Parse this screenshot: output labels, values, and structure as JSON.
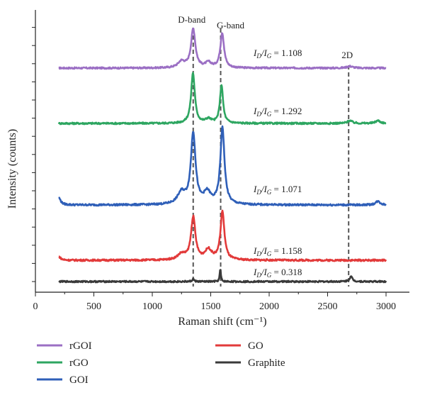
{
  "chart_data": {
    "type": "line",
    "xlabel": "Raman shift (cm⁻¹)",
    "ylabel": "Intensity (counts)",
    "xlim": [
      0,
      3200
    ],
    "x_ticks": [
      0,
      500,
      1000,
      1500,
      2000,
      2500,
      3000
    ],
    "x_range": [
      200,
      3000
    ],
    "legend_position": "bottom",
    "band_markers": [
      {
        "label": "D-band",
        "x": 1350
      },
      {
        "label": "G-band",
        "x": 1585
      },
      {
        "label": "2D",
        "x": 2680
      }
    ],
    "series": [
      {
        "name": "rGOI",
        "color": "#9b6fc4",
        "legend_col": 0,
        "legend_row": 0,
        "baseline": 0.0,
        "ratio_label": "1.108",
        "peaks": [
          {
            "x": 1350,
            "height": 0.62,
            "width": 45
          },
          {
            "x": 1250,
            "height": 0.1,
            "width": 70
          },
          {
            "x": 1598,
            "height": 0.56,
            "width": 38
          },
          {
            "x": 1480,
            "height": 0.08,
            "width": 60
          },
          {
            "x": 2690,
            "height": 0.03,
            "width": 60
          }
        ]
      },
      {
        "name": "rGO",
        "color": "#2ea661",
        "legend_col": 0,
        "legend_row": 1,
        "baseline": 0.0,
        "ratio_label": "1.292",
        "peaks": [
          {
            "x": 1348,
            "height": 0.74,
            "width": 38
          },
          {
            "x": 1592,
            "height": 0.56,
            "width": 32
          },
          {
            "x": 1480,
            "height": 0.06,
            "width": 60
          },
          {
            "x": 2690,
            "height": 0.04,
            "width": 50
          },
          {
            "x": 2930,
            "height": 0.04,
            "width": 50
          }
        ]
      },
      {
        "name": "GOI",
        "color": "#2f5fb8",
        "legend_col": 0,
        "legend_row": 2,
        "baseline": 0.0,
        "ratio_label": "1.071",
        "peaks": [
          {
            "x": 1350,
            "height": 1.0,
            "width": 48
          },
          {
            "x": 1250,
            "height": 0.16,
            "width": 80
          },
          {
            "x": 1600,
            "height": 1.08,
            "width": 42
          },
          {
            "x": 1470,
            "height": 0.16,
            "width": 70
          },
          {
            "x": 200,
            "height": 0.1,
            "width": 40
          },
          {
            "x": 2930,
            "height": 0.05,
            "width": 50
          }
        ]
      },
      {
        "name": "GO",
        "color": "#e23a3a",
        "legend_col": 1,
        "legend_row": 0,
        "baseline": 0.0,
        "ratio_label": "1.158",
        "peaks": [
          {
            "x": 1350,
            "height": 0.6,
            "width": 45
          },
          {
            "x": 1250,
            "height": 0.08,
            "width": 80
          },
          {
            "x": 1600,
            "height": 0.68,
            "width": 40
          },
          {
            "x": 1480,
            "height": 0.14,
            "width": 70
          },
          {
            "x": 200,
            "height": 0.05,
            "width": 40
          }
        ]
      },
      {
        "name": "Graphite",
        "color": "#3a3a3a",
        "legend_col": 1,
        "legend_row": 1,
        "baseline": 0.0,
        "ratio_label": "0.318",
        "peaks": [
          {
            "x": 1350,
            "height": 0.04,
            "width": 20
          },
          {
            "x": 1582,
            "height": 0.2,
            "width": 12
          },
          {
            "x": 2700,
            "height": 0.08,
            "width": 30
          }
        ]
      }
    ]
  }
}
